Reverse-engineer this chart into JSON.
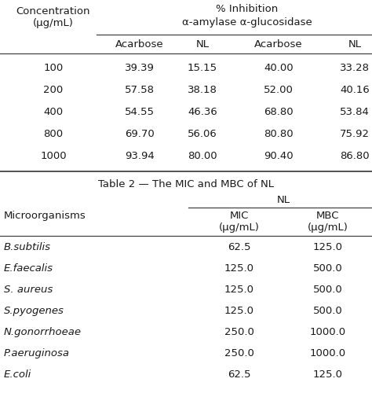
{
  "table1_title_line1": "% Inhibition",
  "table1_title_line2": "α-amylase α-glucosidase",
  "table1_col0_header": "Concentration\n(μg/mL)",
  "table1_subheaders": [
    "Acarbose",
    "NL",
    "Acarbose",
    "NL"
  ],
  "table1_concentrations": [
    "100",
    "200",
    "400",
    "800",
    "1000"
  ],
  "table1_data": [
    [
      "39.39",
      "15.15",
      "40.00",
      "33.28"
    ],
    [
      "57.58",
      "38.18",
      "52.00",
      "40.16"
    ],
    [
      "54.55",
      "46.36",
      "68.80",
      "53.84"
    ],
    [
      "69.70",
      "56.06",
      "80.80",
      "75.92"
    ],
    [
      "93.94",
      "80.00",
      "90.40",
      "86.80"
    ]
  ],
  "table2_title": "Table 2 — The MIC and MBC of NL",
  "table2_nl_header": "NL",
  "table2_col0_header": "Microorganisms",
  "table2_subheaders": [
    "MIC\n(μg/mL)",
    "MBC\n(μg/mL)"
  ],
  "table2_organisms": [
    "B.subtilis",
    "E.faecalis",
    "S. aureus",
    "S.pyogenes",
    "N.gonorrhoeae",
    "P.aeruginosa",
    "E.coli"
  ],
  "table2_data": [
    [
      "62.5",
      "125.0"
    ],
    [
      "125.0",
      "500.0"
    ],
    [
      "125.0",
      "500.0"
    ],
    [
      "125.0",
      "500.0"
    ],
    [
      "250.0",
      "1000.0"
    ],
    [
      "250.0",
      "1000.0"
    ],
    [
      "62.5",
      "125.0"
    ]
  ],
  "bg_color": "#ffffff",
  "text_color": "#1a1a1a",
  "line_color": "#444444",
  "font_size": 9.5
}
